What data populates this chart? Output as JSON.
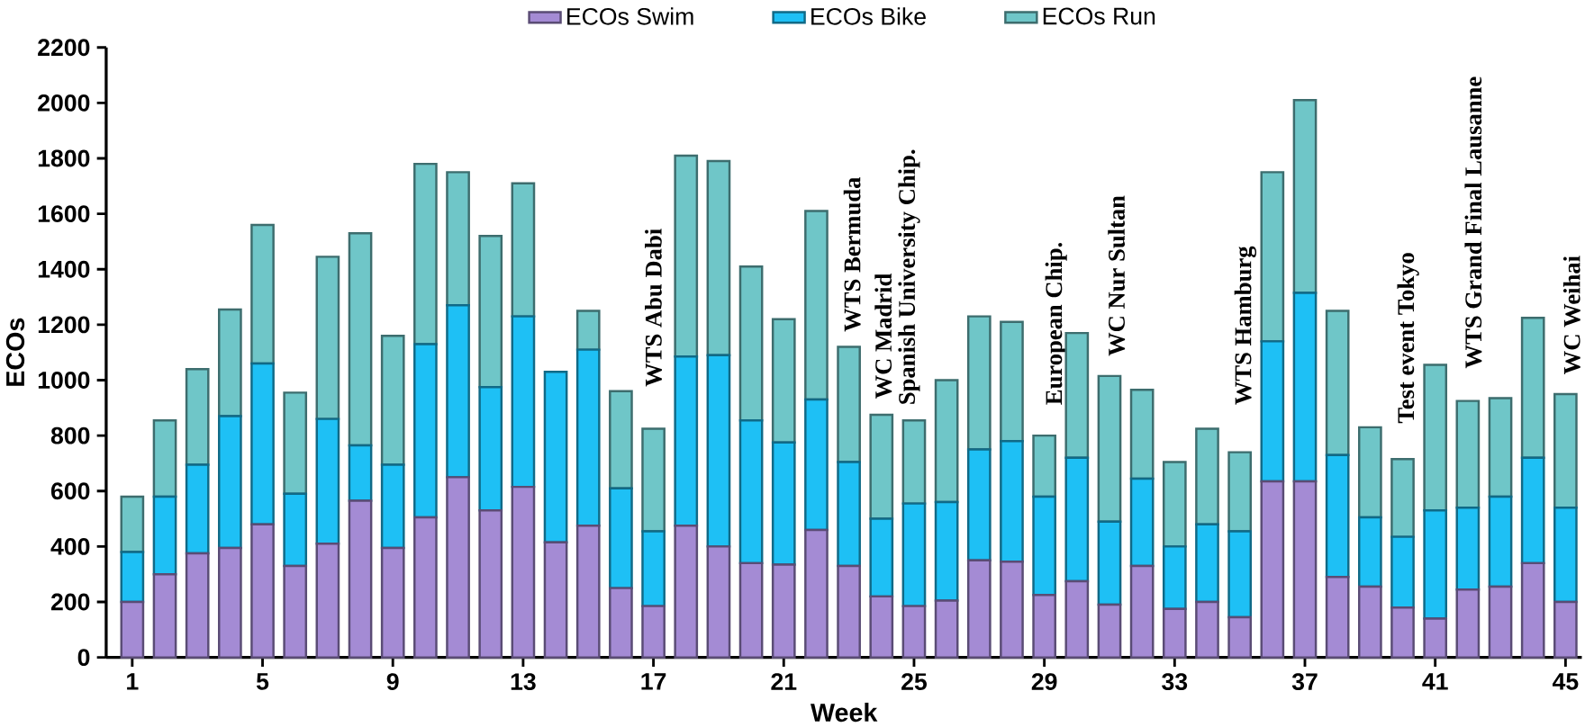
{
  "chart_data": {
    "type": "bar",
    "stacked": true,
    "xlabel": "Week",
    "ylabel": "ECOs",
    "x": [
      1,
      2,
      3,
      4,
      5,
      6,
      7,
      8,
      9,
      10,
      11,
      12,
      13,
      14,
      15,
      16,
      17,
      18,
      19,
      20,
      21,
      22,
      23,
      24,
      25,
      26,
      27,
      28,
      29,
      30,
      31,
      32,
      33,
      34,
      35,
      36,
      37,
      38,
      39,
      40,
      41,
      42,
      43,
      44,
      45
    ],
    "series": [
      {
        "name": "ECOs Swim",
        "color": "#a48bd4",
        "values": [
          200,
          300,
          375,
          395,
          480,
          330,
          410,
          565,
          395,
          505,
          650,
          530,
          615,
          415,
          475,
          250,
          185,
          475,
          400,
          340,
          335,
          460,
          330,
          220,
          185,
          205,
          350,
          345,
          225,
          275,
          190,
          330,
          175,
          200,
          145,
          635,
          635,
          290,
          255,
          180,
          140,
          245,
          255,
          340,
          200
        ]
      },
      {
        "name": "ECOs Bike",
        "color": "#1ec0f5",
        "values": [
          180,
          280,
          320,
          475,
          580,
          260,
          450,
          200,
          300,
          625,
          620,
          445,
          615,
          615,
          635,
          360,
          270,
          610,
          690,
          515,
          440,
          470,
          375,
          280,
          370,
          355,
          400,
          435,
          355,
          445,
          300,
          315,
          225,
          280,
          310,
          505,
          680,
          440,
          250,
          255,
          390,
          295,
          325,
          380,
          340
        ]
      },
      {
        "name": "ECOs Run",
        "color": "#6fc6c8",
        "values": [
          200,
          275,
          345,
          385,
          500,
          365,
          585,
          765,
          465,
          650,
          480,
          545,
          480,
          0,
          140,
          350,
          370,
          725,
          700,
          555,
          445,
          680,
          415,
          375,
          300,
          440,
          480,
          430,
          220,
          450,
          525,
          320,
          305,
          345,
          285,
          610,
          695,
          520,
          325,
          280,
          525,
          385,
          355,
          505,
          410
        ]
      }
    ],
    "xlim": [
      0.2,
      45.5
    ],
    "xticks": [
      1,
      5,
      9,
      13,
      17,
      21,
      25,
      29,
      33,
      37,
      41,
      45
    ],
    "ylim": [
      0,
      2200
    ],
    "yticks": [
      0,
      200,
      400,
      600,
      800,
      1000,
      1200,
      1400,
      1600,
      1800,
      2000,
      2200
    ],
    "legend": "top",
    "grid": false,
    "annotations": [
      "WTS Abu Dabi",
      "WTS Bermuda",
      "WC Madrid",
      "Spanish University Chip.",
      "European Chip.",
      "WC Nur Sultan",
      "WTS Hamburg",
      "Test event Tokyo",
      "WTS Grand Final Lausanne",
      "WC Weihai"
    ]
  }
}
